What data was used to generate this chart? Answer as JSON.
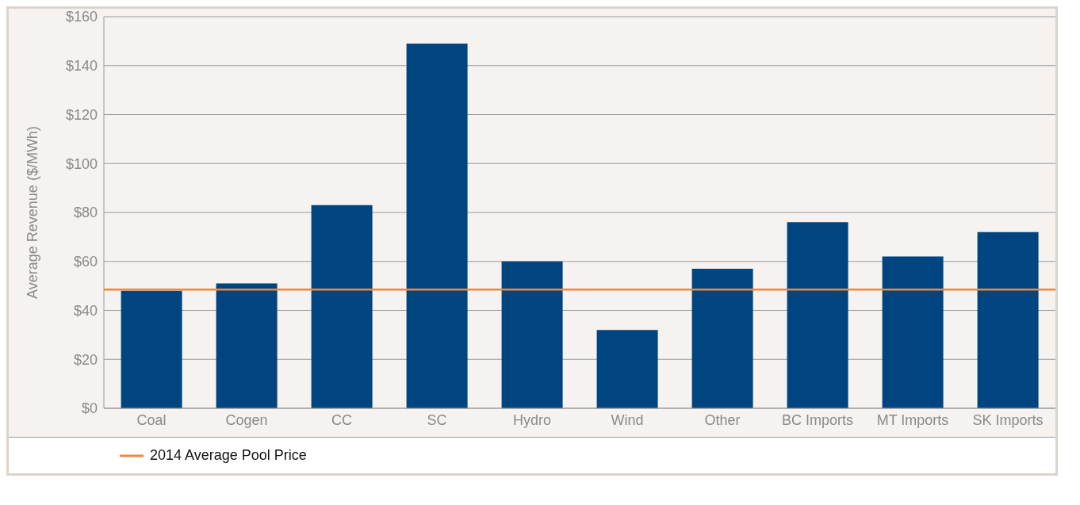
{
  "chart_data": {
    "type": "bar",
    "ylabel": "Average Revenue ($/MWh)",
    "categories": [
      "Coal",
      "Cogen",
      "CC",
      "SC",
      "Hydro",
      "Wind",
      "Other",
      "BC Imports",
      "MT Imports",
      "SK Imports"
    ],
    "values": [
      48,
      51,
      83,
      149,
      60,
      32,
      57,
      76,
      62,
      72
    ],
    "color": "#00457f",
    "ylim": [
      0,
      160
    ],
    "yticks": [
      {
        "value": 0,
        "label": "$0"
      },
      {
        "value": 20,
        "label": "$20"
      },
      {
        "value": 40,
        "label": "$40"
      },
      {
        "value": 60,
        "label": "$60"
      },
      {
        "value": 80,
        "label": "$80"
      },
      {
        "value": 100,
        "label": "$100"
      },
      {
        "value": 120,
        "label": "$120"
      },
      {
        "value": 140,
        "label": "$140"
      },
      {
        "value": 160,
        "label": "$160"
      }
    ],
    "ref_lines": [
      {
        "axis": "y",
        "value": 48.5,
        "label": "2014 Average Pool Price",
        "color": "#f0883a"
      }
    ],
    "grid": "y",
    "legend": "bottom"
  }
}
